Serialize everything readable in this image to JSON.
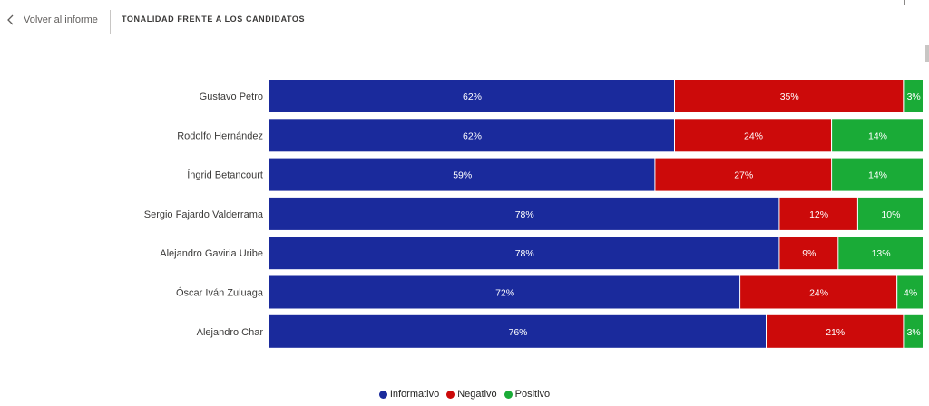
{
  "header": {
    "back_label": "Volver al informe",
    "title": "TONALIDAD FRENTE A LOS CANDIDATOS",
    "back_icon": "chevron-left-icon"
  },
  "colors": {
    "informativo": "#1a2a9c",
    "negativo": "#cc0a0a",
    "positivo": "#1aab37",
    "bar_text": "#ffffff",
    "axis_text": "#3b3a39"
  },
  "chart_data": {
    "type": "bar",
    "orientation": "horizontal",
    "stacked": "100%",
    "categories": [
      "Gustavo Petro",
      "Rodolfo Hernández",
      "Íngrid Betancourt",
      "Sergio Fajardo Valderrama",
      "Alejandro Gaviria Uribe",
      "Óscar Iván Zuluaga",
      "Alejandro Char"
    ],
    "series": [
      {
        "name": "Informativo",
        "values": [
          62,
          62,
          59,
          78,
          78,
          72,
          76
        ],
        "labels": [
          "62%",
          "62%",
          "59%",
          "78%",
          "78%",
          "72%",
          "76%"
        ]
      },
      {
        "name": "Negativo",
        "values": [
          35,
          24,
          27,
          12,
          9,
          24,
          21
        ],
        "labels": [
          "35%",
          "24%",
          "27%",
          "12%",
          "9%",
          "24%",
          "21%"
        ]
      },
      {
        "name": "Positivo",
        "values": [
          3,
          14,
          14,
          10,
          13,
          4,
          3
        ],
        "labels": [
          "3%",
          "14%",
          "14%",
          "10%",
          "13%",
          "4%",
          "3%"
        ]
      }
    ],
    "xlim": [
      0,
      100
    ],
    "grid": false,
    "legend_position": "bottom-center"
  },
  "legend": [
    {
      "label": "Informativo",
      "color_key": "informativo"
    },
    {
      "label": "Negativo",
      "color_key": "negativo"
    },
    {
      "label": "Positivo",
      "color_key": "positivo"
    }
  ]
}
